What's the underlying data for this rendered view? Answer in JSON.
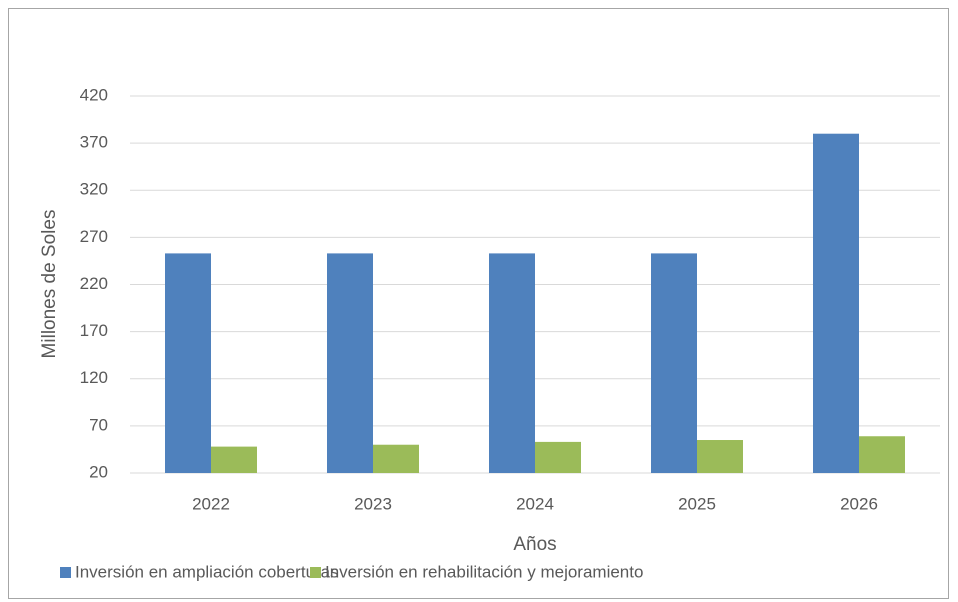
{
  "chart_data": {
    "type": "bar",
    "categories": [
      "2022",
      "2023",
      "2024",
      "2025",
      "2026"
    ],
    "series": [
      {
        "name": "Inversión en ampliación coberturas",
        "color": "#4f81bd",
        "values": [
          253,
          253,
          253,
          253,
          380
        ]
      },
      {
        "name": "Inversión en rehabilitación y mejoramiento",
        "color": "#9bbb59",
        "values": [
          48,
          50,
          53,
          55,
          59
        ]
      }
    ],
    "xlabel": "Años",
    "ylabel": "Millones de Soles",
    "ylim": [
      20,
      420
    ],
    "yticks": [
      20,
      70,
      120,
      170,
      220,
      270,
      320,
      370,
      420
    ],
    "grid": true,
    "legend": "bottom"
  }
}
